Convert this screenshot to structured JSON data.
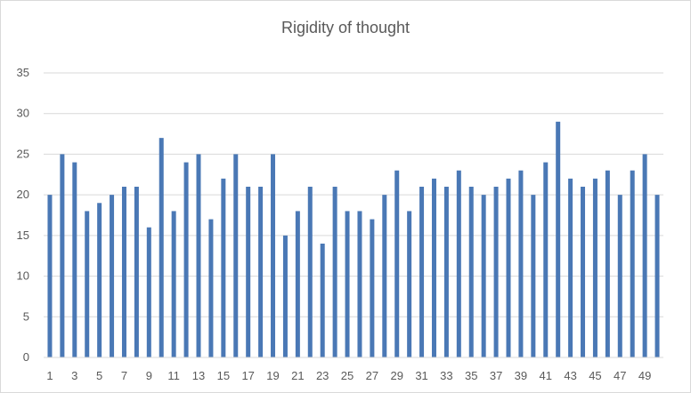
{
  "chart_data": {
    "type": "bar",
    "title": "Rigidity of thought",
    "xlabel": "",
    "ylabel": "",
    "ylim": [
      0,
      35
    ],
    "yticks": [
      0,
      5,
      10,
      15,
      20,
      25,
      30,
      35
    ],
    "grid": true,
    "legend": "none",
    "bar_color": "#4a78b5",
    "categories": [
      1,
      2,
      3,
      4,
      5,
      6,
      7,
      8,
      9,
      10,
      11,
      12,
      13,
      14,
      15,
      16,
      17,
      18,
      19,
      20,
      21,
      22,
      23,
      24,
      25,
      26,
      27,
      28,
      29,
      30,
      31,
      32,
      33,
      34,
      35,
      36,
      37,
      38,
      39,
      40,
      41,
      42,
      43,
      44,
      45,
      46,
      47,
      48,
      49,
      50
    ],
    "x_tick_labels": [
      "1",
      "3",
      "5",
      "7",
      "9",
      "11",
      "13",
      "15",
      "17",
      "19",
      "21",
      "23",
      "25",
      "27",
      "29",
      "31",
      "33",
      "35",
      "37",
      "39",
      "41",
      "43",
      "45",
      "47",
      "49"
    ],
    "values": [
      20,
      25,
      24,
      18,
      19,
      20,
      21,
      21,
      16,
      27,
      18,
      24,
      25,
      17,
      22,
      25,
      21,
      21,
      25,
      15,
      18,
      21,
      14,
      21,
      18,
      18,
      17,
      20,
      23,
      18,
      21,
      22,
      21,
      23,
      21,
      20,
      21,
      22,
      23,
      20,
      24,
      29,
      22,
      21,
      22,
      23,
      20,
      23,
      25,
      20
    ]
  }
}
